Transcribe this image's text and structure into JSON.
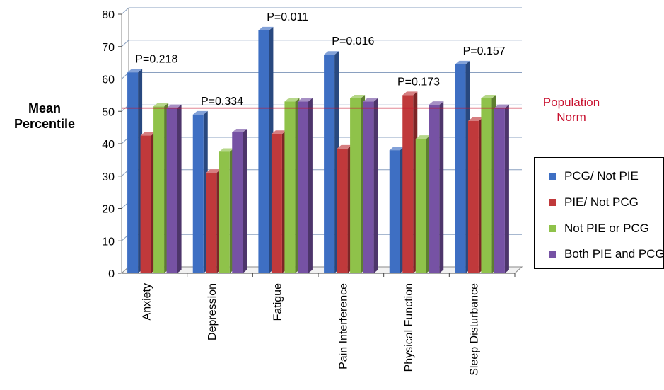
{
  "chart_data": {
    "type": "bar",
    "ylabel": [
      "Mean",
      "Percentile"
    ],
    "ylim": [
      0,
      80
    ],
    "yticks": [
      0,
      10,
      20,
      30,
      40,
      50,
      60,
      70,
      80
    ],
    "grid": true,
    "categories": [
      "Anxiety",
      "Depression",
      "Fatigue",
      "Pain Interference",
      "Physical Function",
      "Sleep Disturbance"
    ],
    "pvalues": [
      "P=0.218",
      "P=0.334",
      "P=0.011",
      "P=0.016",
      "P=0.173",
      "P=0.157"
    ],
    "series": [
      {
        "name": "PCG/ Not PIE",
        "color": "#3e6fc3",
        "values": [
          62,
          49,
          75,
          67.5,
          38,
          64.5
        ]
      },
      {
        "name": "PIE/ Not PCG",
        "color": "#c0393b",
        "values": [
          42.5,
          31,
          43,
          38.5,
          55,
          47
        ]
      },
      {
        "name": "Not PIE or PCG",
        "color": "#8fc24a",
        "values": [
          51.5,
          37.5,
          53,
          54,
          41.5,
          54
        ]
      },
      {
        "name": "Both PIE and PCG",
        "color": "#7652a4",
        "values": [
          51,
          43.5,
          53,
          53,
          52,
          51
        ]
      }
    ],
    "reference_line": {
      "value": 51,
      "label": [
        "Population",
        "Norm"
      ],
      "color": "#c8102e"
    },
    "legend_position": "right"
  }
}
